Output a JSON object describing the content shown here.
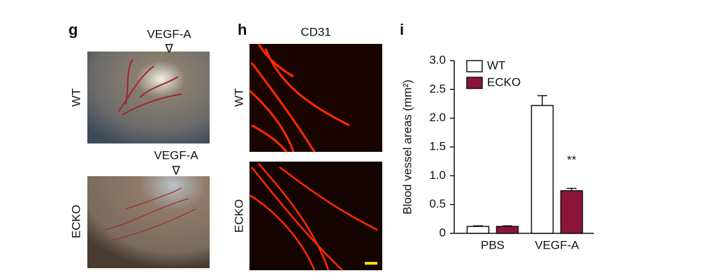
{
  "panel_g": {
    "label": "g",
    "rows": [
      {
        "name": "WT",
        "marker": "VEGF-A",
        "arrow": "∇"
      },
      {
        "name": "ECKO",
        "marker": "VEGF-A",
        "arrow": "∇"
      }
    ]
  },
  "panel_h": {
    "label": "h",
    "title": "CD31",
    "rows": [
      "WT",
      "ECKO"
    ]
  },
  "chart_data": {
    "type": "bar",
    "panel_label": "i",
    "y_label": "Blood vessel areas (mm²)",
    "categories": [
      "PBS",
      "VEGF-A"
    ],
    "series": [
      {
        "name": "WT",
        "color": "#ffffff",
        "values": [
          0.12,
          2.22
        ],
        "errors": [
          0.01,
          0.17
        ]
      },
      {
        "name": "ECKO",
        "color": "#8b1538",
        "values": [
          0.12,
          0.74
        ],
        "errors": [
          0.01,
          0.04
        ]
      }
    ],
    "annotations": [
      {
        "text": "**",
        "series": 1,
        "category": 1
      }
    ],
    "ylim": [
      0,
      3.0
    ],
    "yticks": [
      0,
      0.5,
      {
        "value": 1,
        "label": "1.0"
      },
      1.5,
      {
        "value": 2,
        "label": "2.0"
      },
      2.5,
      {
        "value": 3,
        "label": "3.0"
      }
    ],
    "legend": "upper-left"
  }
}
